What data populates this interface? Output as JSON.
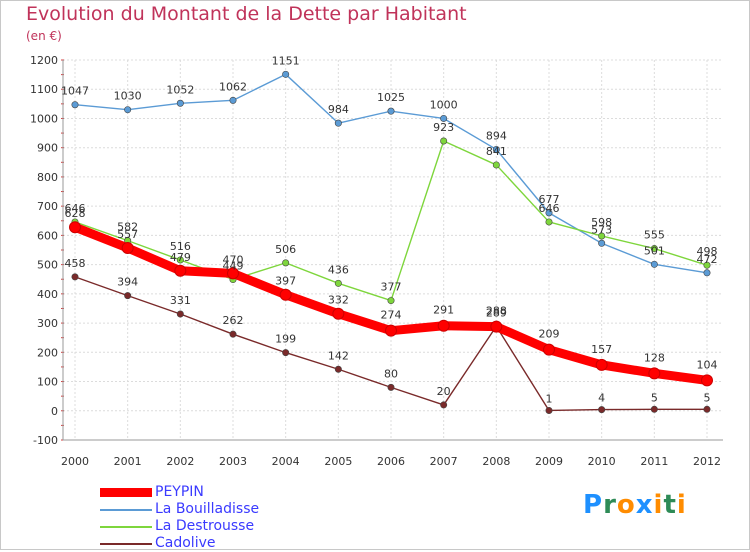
{
  "chart_data": {
    "type": "line",
    "title": "Evolution du Montant de la Dette par Habitant",
    "subtitle": "(en €)",
    "x": [
      "2000",
      "2001",
      "2002",
      "2003",
      "2004",
      "2005",
      "2006",
      "2007",
      "2008",
      "2009",
      "2010",
      "2011",
      "2012"
    ],
    "ylim": [
      -100,
      1200
    ],
    "yticks": [
      -100,
      0,
      100,
      200,
      300,
      400,
      500,
      600,
      700,
      800,
      900,
      1000,
      1100,
      1200
    ],
    "grid": true,
    "legend": "bottom-left",
    "series": [
      {
        "name": "La Bouilladisse",
        "color": "#5b9bd5",
        "values": [
          1047,
          1030,
          1052,
          1062,
          1151,
          984,
          1025,
          1000,
          894,
          677,
          573,
          501,
          472
        ]
      },
      {
        "name": "La Destrousse",
        "color": "#7ed63c",
        "values": [
          646,
          582,
          516,
          449,
          506,
          436,
          377,
          923,
          841,
          646,
          598,
          555,
          498
        ]
      },
      {
        "name": "Cadolive",
        "color": "#7a2a2a",
        "values": [
          458,
          394,
          331,
          262,
          199,
          142,
          80,
          20,
          289,
          1,
          4,
          5,
          5
        ]
      },
      {
        "name": "PEYPIN",
        "color": "#ff0000",
        "values": [
          628,
          557,
          479,
          470,
          397,
          332,
          274,
          291,
          288,
          209,
          157,
          128,
          104
        ]
      }
    ]
  },
  "legend": {
    "items": [
      {
        "label": "PEYPIN",
        "color": "#ff0000"
      },
      {
        "label": "La Bouilladisse",
        "color": "#5b9bd5"
      },
      {
        "label": "La Destrousse",
        "color": "#7ed63c"
      },
      {
        "label": "Cadolive",
        "color": "#7a2a2a"
      }
    ]
  },
  "brand": {
    "letters": [
      "P",
      "r",
      "o",
      "x",
      "i",
      "t",
      "i"
    ],
    "colors": [
      "#1e90ff",
      "#2e8b57",
      "#ff8c00",
      "#1e90ff",
      "#ff8c00",
      "#2e8b57",
      "#ff8c00"
    ]
  }
}
